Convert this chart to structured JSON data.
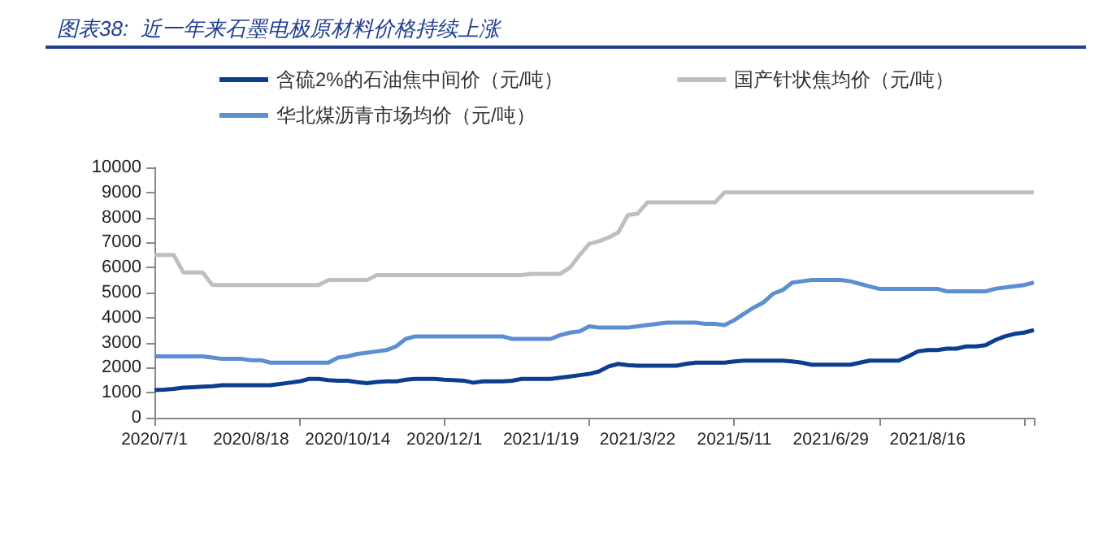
{
  "chart_data": {
    "type": "line",
    "title": "图表38:  近一年来石墨电极原材料价格持续上涨",
    "categories": [
      "2020/7/1",
      null,
      null,
      null,
      null,
      null,
      null,
      null,
      null,
      null,
      "2020/8/18",
      null,
      null,
      null,
      null,
      null,
      null,
      null,
      null,
      null,
      "2020/10/14",
      null,
      null,
      null,
      null,
      null,
      null,
      null,
      null,
      null,
      "2020/12/1",
      null,
      null,
      null,
      null,
      null,
      null,
      null,
      null,
      null,
      "2021/1/19",
      null,
      null,
      null,
      null,
      null,
      null,
      null,
      null,
      null,
      "2021/3/22",
      null,
      null,
      null,
      null,
      null,
      null,
      null,
      null,
      null,
      "2021/5/11",
      null,
      null,
      null,
      null,
      null,
      null,
      null,
      null,
      null,
      "2021/6/29",
      null,
      null,
      null,
      null,
      null,
      null,
      null,
      null,
      null,
      "2021/8/16",
      null,
      null,
      null,
      null,
      null,
      null,
      null,
      null,
      null,
      null,
      null
    ],
    "series": [
      {
        "name": "含硫2%的石油焦中间价（元/吨）",
        "color": "#0b3d91",
        "values": [
          1100,
          1120,
          1150,
          1200,
          1220,
          1240,
          1260,
          1300,
          1300,
          1300,
          1300,
          1300,
          1300,
          1350,
          1400,
          1450,
          1550,
          1550,
          1500,
          1480,
          1480,
          1420,
          1380,
          1430,
          1450,
          1450,
          1520,
          1550,
          1550,
          1550,
          1520,
          1500,
          1480,
          1400,
          1450,
          1450,
          1450,
          1480,
          1550,
          1550,
          1550,
          1550,
          1600,
          1650,
          1700,
          1750,
          1850,
          2050,
          2150,
          2100,
          2080,
          2080,
          2080,
          2080,
          2080,
          2150,
          2200,
          2200,
          2200,
          2200,
          2250,
          2280,
          2280,
          2280,
          2280,
          2280,
          2250,
          2200,
          2120,
          2120,
          2120,
          2120,
          2120,
          2200,
          2280,
          2280,
          2280,
          2280,
          2450,
          2650,
          2700,
          2700,
          2760,
          2760,
          2850,
          2850,
          2900,
          3100,
          3250,
          3350,
          3400,
          3500
        ]
      },
      {
        "name": "国产针状焦均价（元/吨）",
        "color": "#bfbfbf",
        "values": [
          6500,
          6500,
          6500,
          5800,
          5800,
          5800,
          5300,
          5300,
          5300,
          5300,
          5300,
          5300,
          5300,
          5300,
          5300,
          5300,
          5300,
          5300,
          5500,
          5500,
          5500,
          5500,
          5500,
          5700,
          5700,
          5700,
          5700,
          5700,
          5700,
          5700,
          5700,
          5700,
          5700,
          5700,
          5700,
          5700,
          5700,
          5700,
          5700,
          5750,
          5750,
          5750,
          5750,
          6000,
          6500,
          6950,
          7050,
          7200,
          7400,
          8100,
          8150,
          8600,
          8600,
          8600,
          8600,
          8600,
          8600,
          8600,
          8600,
          9000,
          9000,
          9000,
          9000,
          9000,
          9000,
          9000,
          9000,
          9000,
          9000,
          9000,
          9000,
          9000,
          9000,
          9000,
          9000,
          9000,
          9000,
          9000,
          9000,
          9000,
          9000,
          9000,
          9000,
          9000,
          9000,
          9000,
          9000,
          9000,
          9000,
          9000,
          9000,
          9000
        ]
      },
      {
        "name": "华北煤沥青市场均价（元/吨）",
        "color": "#5b8fd1",
        "values": [
          2450,
          2450,
          2450,
          2450,
          2450,
          2450,
          2400,
          2350,
          2350,
          2350,
          2300,
          2300,
          2200,
          2200,
          2200,
          2200,
          2200,
          2200,
          2200,
          2400,
          2450,
          2550,
          2600,
          2650,
          2700,
          2850,
          3150,
          3250,
          3250,
          3250,
          3250,
          3250,
          3250,
          3250,
          3250,
          3250,
          3250,
          3150,
          3150,
          3150,
          3150,
          3150,
          3300,
          3400,
          3450,
          3650,
          3600,
          3600,
          3600,
          3600,
          3650,
          3700,
          3750,
          3800,
          3800,
          3800,
          3800,
          3750,
          3750,
          3700,
          3900,
          4150,
          4400,
          4600,
          4950,
          5100,
          5400,
          5450,
          5500,
          5500,
          5500,
          5500,
          5450,
          5350,
          5250,
          5150,
          5150,
          5150,
          5150,
          5150,
          5150,
          5150,
          5050,
          5050,
          5050,
          5050,
          5050,
          5150,
          5200,
          5250,
          5300,
          5400
        ]
      }
    ],
    "ylim": [
      0,
      10000
    ],
    "yticks": [
      0,
      1000,
      2000,
      3000,
      4000,
      5000,
      6000,
      7000,
      8000,
      9000,
      10000
    ],
    "grid": false,
    "legend": "top",
    "marker": "none"
  }
}
